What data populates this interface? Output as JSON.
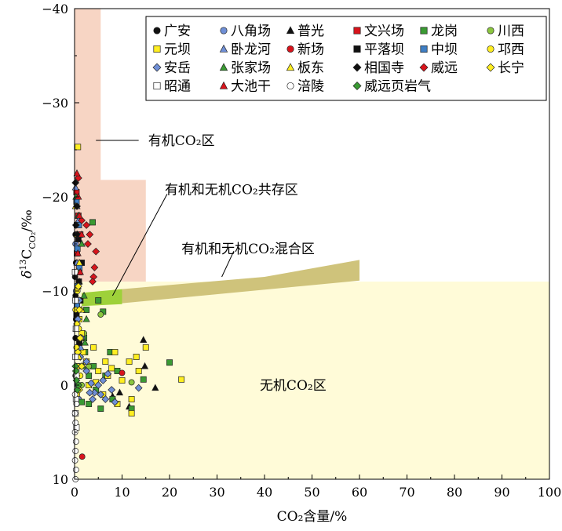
{
  "chart_data": {
    "type": "scatter",
    "x_axis": {
      "label": "CO₂含量/%",
      "range": [
        0,
        100
      ],
      "ticks": [
        0,
        10,
        20,
        30,
        40,
        50,
        60,
        70,
        80,
        90,
        100
      ]
    },
    "y_axis": {
      "label_delta": "δ",
      "label_sup": "13",
      "label_c": "C",
      "label_sub": "CO₂",
      "label_unit": "/‰",
      "range": [
        10,
        -40
      ],
      "inverted": true,
      "ticks": [
        -40,
        -30,
        -20,
        -10,
        0,
        10
      ]
    },
    "regions": [
      {
        "name": "有机CO₂区",
        "color": "#f7d5c4",
        "polygon": [
          [
            0,
            -40
          ],
          [
            5.5,
            -40
          ],
          [
            5.5,
            -21.8
          ],
          [
            15,
            -21.8
          ],
          [
            15,
            -11
          ],
          [
            0,
            -11
          ]
        ]
      },
      {
        "name": "无机CO₂区",
        "color": "#fffbd8",
        "polygon": [
          [
            0,
            -11
          ],
          [
            100,
            -11
          ],
          [
            100,
            10
          ],
          [
            0,
            10
          ]
        ]
      },
      {
        "name": "有机和无机CO₂混合区",
        "color": "#cfc37b",
        "polygon": [
          [
            10,
            -10.2
          ],
          [
            40,
            -11.5
          ],
          [
            60,
            -13.3
          ],
          [
            60,
            -11.1
          ],
          [
            10,
            -8.7
          ]
        ]
      },
      {
        "name": "有机和无机CO₂共存区",
        "color": "#9ed13a",
        "polygon": [
          [
            1.5,
            -9.8
          ],
          [
            10,
            -10.2
          ],
          [
            10,
            -8.6
          ],
          [
            1.5,
            -8.4
          ]
        ]
      }
    ],
    "annotations": [
      {
        "id": "organic",
        "text": "有机CO₂区",
        "line": [
          [
            4.5,
            -26
          ],
          [
            13.5,
            -26
          ]
        ],
        "text_at": [
          15.5,
          -26
        ]
      },
      {
        "id": "coexist",
        "text": "有机和无机CO₂共存区",
        "line": [
          [
            8,
            -9.5
          ],
          [
            19.5,
            -20.3
          ]
        ],
        "text_at": [
          19,
          -20.8
        ]
      },
      {
        "id": "mixed",
        "text": "有机和无机CO₂混合区",
        "line": [
          [
            31,
            -11.5
          ],
          [
            33.5,
            -14.2
          ]
        ],
        "text_at": [
          22.5,
          -14.5
        ]
      },
      {
        "id": "inorganic",
        "text": "无机CO₂区",
        "line": [],
        "text_at": [
          39,
          0
        ]
      }
    ],
    "series": [
      {
        "name": "广安",
        "marker": "circle",
        "color": "#111111",
        "points": [
          [
            0.1,
            -11.5
          ],
          [
            0.2,
            -9.5
          ],
          [
            0.3,
            -7
          ],
          [
            0.2,
            -5
          ],
          [
            0.4,
            -3
          ],
          [
            0.2,
            -1
          ],
          [
            0.3,
            1
          ],
          [
            0.5,
            2
          ],
          [
            0.3,
            -13
          ],
          [
            0.2,
            -16
          ]
        ]
      },
      {
        "name": "八角场",
        "marker": "circle",
        "color": "#6f8fd6",
        "points": [
          [
            0.2,
            -12
          ],
          [
            0.3,
            -10
          ],
          [
            0.5,
            -8
          ],
          [
            0.4,
            -6
          ],
          [
            0.8,
            -4
          ],
          [
            1,
            -2
          ],
          [
            0.6,
            0
          ],
          [
            0.9,
            1.5
          ],
          [
            0.2,
            -15
          ]
        ]
      },
      {
        "name": "普光",
        "marker": "triangle",
        "color": "#111111",
        "points": [
          [
            14.5,
            -4.8
          ],
          [
            17,
            0.3
          ],
          [
            14.8,
            -2
          ],
          [
            11.5,
            2.3
          ],
          [
            8,
            1.2
          ],
          [
            9.5,
            0.8
          ]
        ]
      },
      {
        "name": "文兴场",
        "marker": "square",
        "color": "#d8141c",
        "points": [
          [
            0.4,
            -20.5
          ],
          [
            0.8,
            -18
          ],
          [
            1.2,
            -16
          ],
          [
            0.5,
            -14
          ],
          [
            1,
            -12
          ],
          [
            0.7,
            -9
          ],
          [
            0.3,
            -6
          ]
        ]
      },
      {
        "name": "龙岗",
        "marker": "square",
        "color": "#3a9a33",
        "points": [
          [
            3.8,
            -17.3
          ],
          [
            5,
            -9
          ],
          [
            6,
            -7.8
          ],
          [
            7.5,
            -3.5
          ],
          [
            9,
            -1.5
          ],
          [
            20,
            -2.4
          ],
          [
            14.5,
            -0.6
          ],
          [
            4.5,
            0.5
          ],
          [
            5.5,
            2.5
          ],
          [
            3,
            2
          ],
          [
            1.5,
            1.8
          ],
          [
            3,
            -1
          ],
          [
            2.2,
            -3.5
          ],
          [
            2,
            -5
          ],
          [
            6.5,
            -1
          ],
          [
            4,
            -2
          ],
          [
            8,
            1.5
          ],
          [
            12,
            2.5
          ],
          [
            1.2,
            -9
          ],
          [
            2.5,
            -8
          ]
        ]
      },
      {
        "name": "川西",
        "marker": "circle",
        "color": "#8bc63f",
        "points": [
          [
            5.5,
            -7.5
          ],
          [
            4,
            -4
          ],
          [
            3,
            -2
          ],
          [
            1.5,
            0
          ],
          [
            12,
            -0.3
          ],
          [
            2,
            -5.5
          ]
        ]
      },
      {
        "name": "元坝",
        "marker": "square",
        "color": "#ffee22",
        "points": [
          [
            0.7,
            -25.3
          ],
          [
            22.5,
            -0.6
          ],
          [
            15,
            -4
          ],
          [
            13,
            -3
          ],
          [
            13.5,
            -1.5
          ],
          [
            10,
            -0.5
          ],
          [
            7,
            -1
          ],
          [
            5,
            -1.5
          ],
          [
            4,
            -4
          ],
          [
            2.5,
            -2.5
          ],
          [
            1.8,
            -3.5
          ],
          [
            1.5,
            -5.5
          ],
          [
            1,
            -7
          ],
          [
            0.8,
            -9
          ],
          [
            6,
            1
          ],
          [
            9,
            2
          ],
          [
            12,
            3
          ],
          [
            3,
            0
          ],
          [
            4.5,
            -0.3
          ],
          [
            6.5,
            -2.5
          ],
          [
            7.8,
            -1.8
          ],
          [
            11.5,
            -2.5
          ],
          [
            12,
            1.5
          ],
          [
            8.5,
            -3.5
          ]
        ]
      },
      {
        "name": "卧龙河",
        "marker": "triangle",
        "color": "#6f8fd6",
        "points": [
          [
            0.2,
            -21
          ],
          [
            0.5,
            -19
          ],
          [
            0.8,
            -17.5
          ],
          [
            1.5,
            -15
          ],
          [
            0.5,
            -13
          ],
          [
            1,
            -11
          ],
          [
            0.5,
            -8
          ],
          [
            0.3,
            -6
          ],
          [
            1.3,
            -4
          ]
        ]
      },
      {
        "name": "新场",
        "marker": "circle",
        "color": "#d8141c",
        "points": [
          [
            1.6,
            7.6
          ],
          [
            0.8,
            0
          ],
          [
            0.4,
            -2
          ],
          [
            1.2,
            -5
          ],
          [
            10,
            -1.3
          ],
          [
            1,
            -8
          ]
        ]
      },
      {
        "name": "平落坝",
        "marker": "square",
        "color": "#111111",
        "points": [
          [
            0.5,
            -17
          ],
          [
            0.8,
            -15.5
          ],
          [
            1.5,
            -13
          ],
          [
            0.9,
            -11
          ],
          [
            1.2,
            -9
          ],
          [
            0.4,
            -7.5
          ],
          [
            1,
            -4.5
          ]
        ]
      },
      {
        "name": "中坝",
        "marker": "square",
        "color": "#3f7fc4",
        "points": [
          [
            0.4,
            -19.5
          ],
          [
            0.9,
            -17
          ],
          [
            0.6,
            -14.5
          ],
          [
            1,
            -12.5
          ],
          [
            0.7,
            -10.5
          ],
          [
            0.5,
            -8.5
          ]
        ]
      },
      {
        "name": "邛西",
        "marker": "circle",
        "color": "#ffee22",
        "points": [
          [
            0.3,
            -12
          ],
          [
            0.6,
            -10
          ],
          [
            0.2,
            -8
          ],
          [
            0.9,
            -6
          ],
          [
            0.4,
            -4
          ],
          [
            0.7,
            -2
          ],
          [
            1.2,
            -1
          ],
          [
            0.5,
            1
          ]
        ]
      },
      {
        "name": "安岳",
        "marker": "diamond",
        "color": "#6f8fd6",
        "points": [
          [
            0.5,
            -12
          ],
          [
            1,
            -9
          ],
          [
            0.7,
            -7
          ],
          [
            1.5,
            -5
          ],
          [
            1.2,
            -3
          ],
          [
            2.5,
            -1.5
          ],
          [
            3.5,
            -0.2
          ],
          [
            4.2,
            0.8
          ],
          [
            5.5,
            1
          ],
          [
            6.5,
            1.5
          ],
          [
            7.8,
            0.5
          ],
          [
            8.5,
            1.8
          ],
          [
            3.2,
            0.8
          ],
          [
            2.5,
            -2.5
          ],
          [
            5,
            0
          ],
          [
            13.5,
            0.3
          ],
          [
            7,
            -1.2
          ],
          [
            3.8,
            1.5
          ],
          [
            6,
            -0.5
          ]
        ]
      },
      {
        "name": "张家场",
        "marker": "triangle",
        "color": "#3a9a33",
        "points": [
          [
            0.3,
            -20
          ],
          [
            0.8,
            -18
          ],
          [
            1.5,
            -15
          ],
          [
            1.2,
            -12
          ],
          [
            2,
            -9.5
          ],
          [
            2.5,
            -7
          ],
          [
            2.2,
            -4.5
          ],
          [
            1.8,
            -2
          ]
        ]
      },
      {
        "name": "板东",
        "marker": "triangle",
        "color": "#ffee22",
        "points": [
          [
            0.2,
            -19
          ],
          [
            0.5,
            -16
          ],
          [
            1,
            -13
          ],
          [
            0.7,
            -10.5
          ],
          [
            1.5,
            -8
          ],
          [
            1.3,
            -5
          ],
          [
            0.9,
            -3
          ]
        ]
      },
      {
        "name": "相国寺",
        "marker": "diamond",
        "color": "#111111",
        "points": [
          [
            0.2,
            -21.5
          ],
          [
            0.5,
            -19
          ],
          [
            0.3,
            -17
          ],
          [
            0.6,
            -16
          ]
        ]
      },
      {
        "name": "威远",
        "marker": "diamond",
        "color": "#d8141c",
        "points": [
          [
            4.5,
            -14.2
          ],
          [
            4,
            -11.5
          ],
          [
            3.8,
            -11
          ],
          [
            3.2,
            -16
          ],
          [
            4.2,
            -12.5
          ],
          [
            2.5,
            -17
          ],
          [
            1.5,
            -17.5
          ],
          [
            2.8,
            -15
          ],
          [
            0.8,
            -22
          ]
        ]
      },
      {
        "name": "长宁",
        "marker": "diamond",
        "color": "#ffee22",
        "points": [
          [
            0.5,
            -12
          ],
          [
            0.8,
            -10.5
          ],
          [
            0.3,
            -9
          ],
          [
            1,
            -8
          ],
          [
            0.5,
            -6.5
          ],
          [
            1.2,
            -5
          ],
          [
            0.7,
            -3.5
          ],
          [
            1.5,
            -2
          ],
          [
            0.4,
            -1
          ],
          [
            1,
            0.5
          ]
        ]
      },
      {
        "name": "昭通",
        "marker": "square-open",
        "color": "#ffffff",
        "points": [
          [
            0.1,
            -12
          ],
          [
            0.2,
            -9
          ],
          [
            0.3,
            -6
          ],
          [
            0.2,
            -3
          ],
          [
            0.4,
            -1
          ],
          [
            0.3,
            1.5
          ],
          [
            0.2,
            3
          ],
          [
            0.4,
            4.5
          ]
        ]
      },
      {
        "name": "大池干",
        "marker": "triangle",
        "color": "#d8141c",
        "points": [
          [
            0.5,
            -22.5
          ],
          [
            0.8,
            -20
          ],
          [
            1,
            -18
          ],
          [
            1.5,
            -16
          ],
          [
            0.7,
            -14
          ],
          [
            1.2,
            -12
          ]
        ]
      },
      {
        "name": "涪陵",
        "marker": "circle-open",
        "color": "#ffffff",
        "points": [
          [
            0.1,
            3
          ],
          [
            0.2,
            4
          ],
          [
            0.1,
            5
          ],
          [
            0.3,
            6
          ],
          [
            0.2,
            7
          ],
          [
            0.1,
            8
          ],
          [
            0.3,
            9
          ],
          [
            0.2,
            10
          ],
          [
            0.4,
            2
          ],
          [
            0.1,
            1
          ]
        ]
      },
      {
        "name": "威远页岩气",
        "marker": "diamond",
        "color": "#3a9a33",
        "points": [
          [
            0.2,
            -2
          ],
          [
            0.4,
            -0.5
          ],
          [
            0.6,
            0.5
          ],
          [
            0.3,
            -1.5
          ],
          [
            0.8,
            0
          ]
        ]
      }
    ],
    "legend": {
      "placement": "top-right",
      "columns": 6
    }
  }
}
